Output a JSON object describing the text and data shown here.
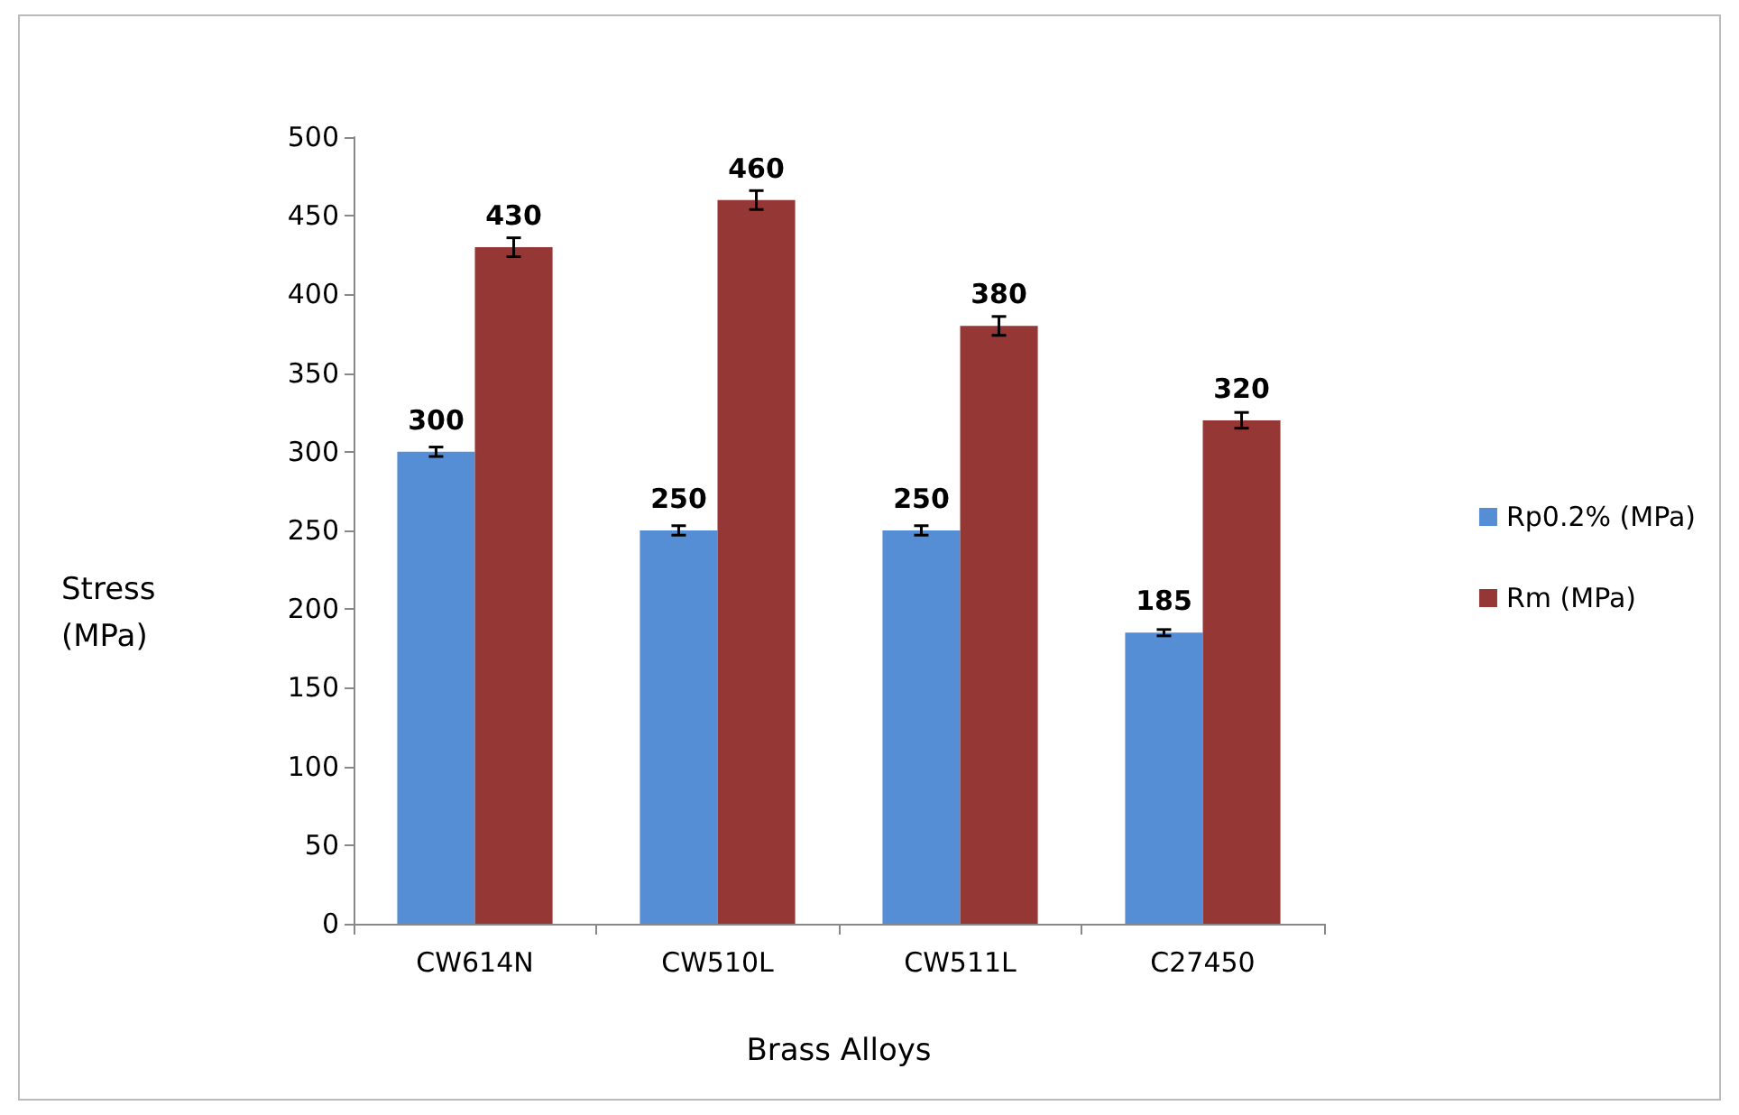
{
  "chart_data": {
    "type": "bar",
    "xlabel": "Brass Alloys",
    "ylabel": "Stress (MPa)",
    "categories": [
      "CW614N",
      "CW510L",
      "CW511L",
      "C27450"
    ],
    "series": [
      {
        "name": "Rp0.2% (MPa)",
        "color": "#558ed5",
        "values": [
          300,
          250,
          250,
          185
        ],
        "errors": [
          3,
          3,
          3,
          2
        ]
      },
      {
        "name": "Rm (MPa)",
        "color": "#953735",
        "values": [
          430,
          460,
          380,
          320
        ],
        "errors": [
          6,
          6,
          6,
          5
        ]
      }
    ],
    "ylim": [
      0,
      500
    ],
    "yticks": [
      0,
      50,
      100,
      150,
      200,
      250,
      300,
      350,
      400,
      450,
      500
    ],
    "data_labels": true,
    "grid": false,
    "legend": "right"
  }
}
